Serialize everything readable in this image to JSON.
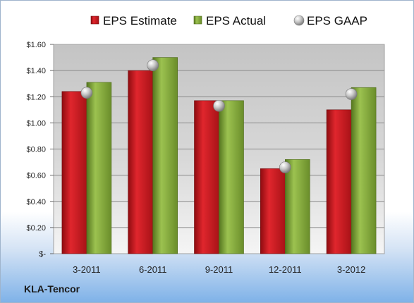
{
  "company": "KLA-Tencor",
  "chart_data": {
    "type": "bar",
    "categories": [
      "3-2011",
      "6-2011",
      "9-2011",
      "12-2011",
      "3-2012"
    ],
    "series": [
      {
        "name": "EPS Estimate",
        "kind": "bar",
        "color": "#c8161d",
        "values": [
          1.24,
          1.4,
          1.17,
          0.65,
          1.1
        ]
      },
      {
        "name": "EPS Actual",
        "kind": "bar",
        "color": "#7fa33a",
        "values": [
          1.31,
          1.5,
          1.17,
          0.72,
          1.27
        ]
      },
      {
        "name": "EPS GAAP",
        "kind": "marker",
        "color": "#b8b8b8",
        "values": [
          1.23,
          1.44,
          1.13,
          0.66,
          1.22
        ]
      }
    ],
    "ylim": [
      0,
      1.6
    ],
    "yticks": [
      {
        "value": 0,
        "label": "$-"
      },
      {
        "value": 0.2,
        "label": "$0.20"
      },
      {
        "value": 0.4,
        "label": "$0.40"
      },
      {
        "value": 0.6,
        "label": "$0.60"
      },
      {
        "value": 0.8,
        "label": "$0.80"
      },
      {
        "value": 1.0,
        "label": "$1.00"
      },
      {
        "value": 1.2,
        "label": "$1.20"
      },
      {
        "value": 1.4,
        "label": "$1.40"
      },
      {
        "value": 1.6,
        "label": "$1.60"
      }
    ],
    "grid": true,
    "legend_position": "top"
  }
}
